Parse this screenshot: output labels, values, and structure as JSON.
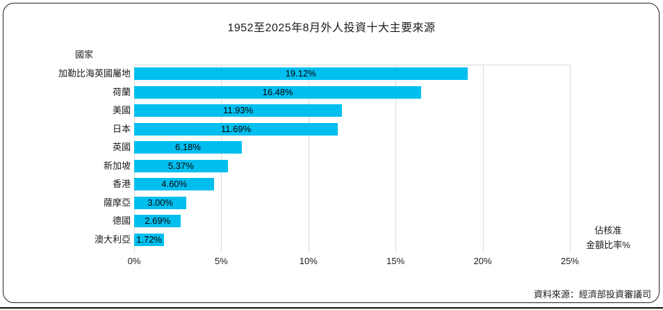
{
  "title": "1952至2025年8月外人投資十大主要來源",
  "y_axis_title": "國家",
  "x_axis_title_line1": "佔核准",
  "x_axis_title_line2": "金額比率%",
  "source_note": "資料來源：經濟部投資審議司",
  "colors": {
    "bar": "#00bfef",
    "gridline": "#d9d9d9",
    "text": "#1a1a1a",
    "frame_border": "#1f1f1f"
  },
  "chart_data": {
    "type": "bar",
    "orientation": "horizontal",
    "title": "1952至2025年8月外人投資十大主要來源",
    "ylabel": "國家",
    "xlabel": "佔核准金額比率%",
    "categories": [
      "加勒比海英國屬地",
      "荷蘭",
      "美國",
      "日本",
      "英國",
      "新加坡",
      "香港",
      "薩摩亞",
      "德國",
      "澳大利亞"
    ],
    "values": [
      19.12,
      16.48,
      11.93,
      11.69,
      6.18,
      5.37,
      4.6,
      3.0,
      2.69,
      1.72
    ],
    "data_labels": [
      "19.12%",
      "16.48%",
      "11.93%",
      "11.69%",
      "6.18%",
      "5.37%",
      "4.60%",
      "3.00%",
      "2.69%",
      "1.72%"
    ],
    "x_ticks": [
      "0%",
      "5%",
      "10%",
      "15%",
      "20%",
      "25%"
    ],
    "x_tick_values": [
      0,
      5,
      10,
      15,
      20,
      25
    ],
    "xlim": [
      0,
      25
    ],
    "grid": true,
    "legend_position": "none",
    "data_label_position": "center-inside-bar"
  }
}
